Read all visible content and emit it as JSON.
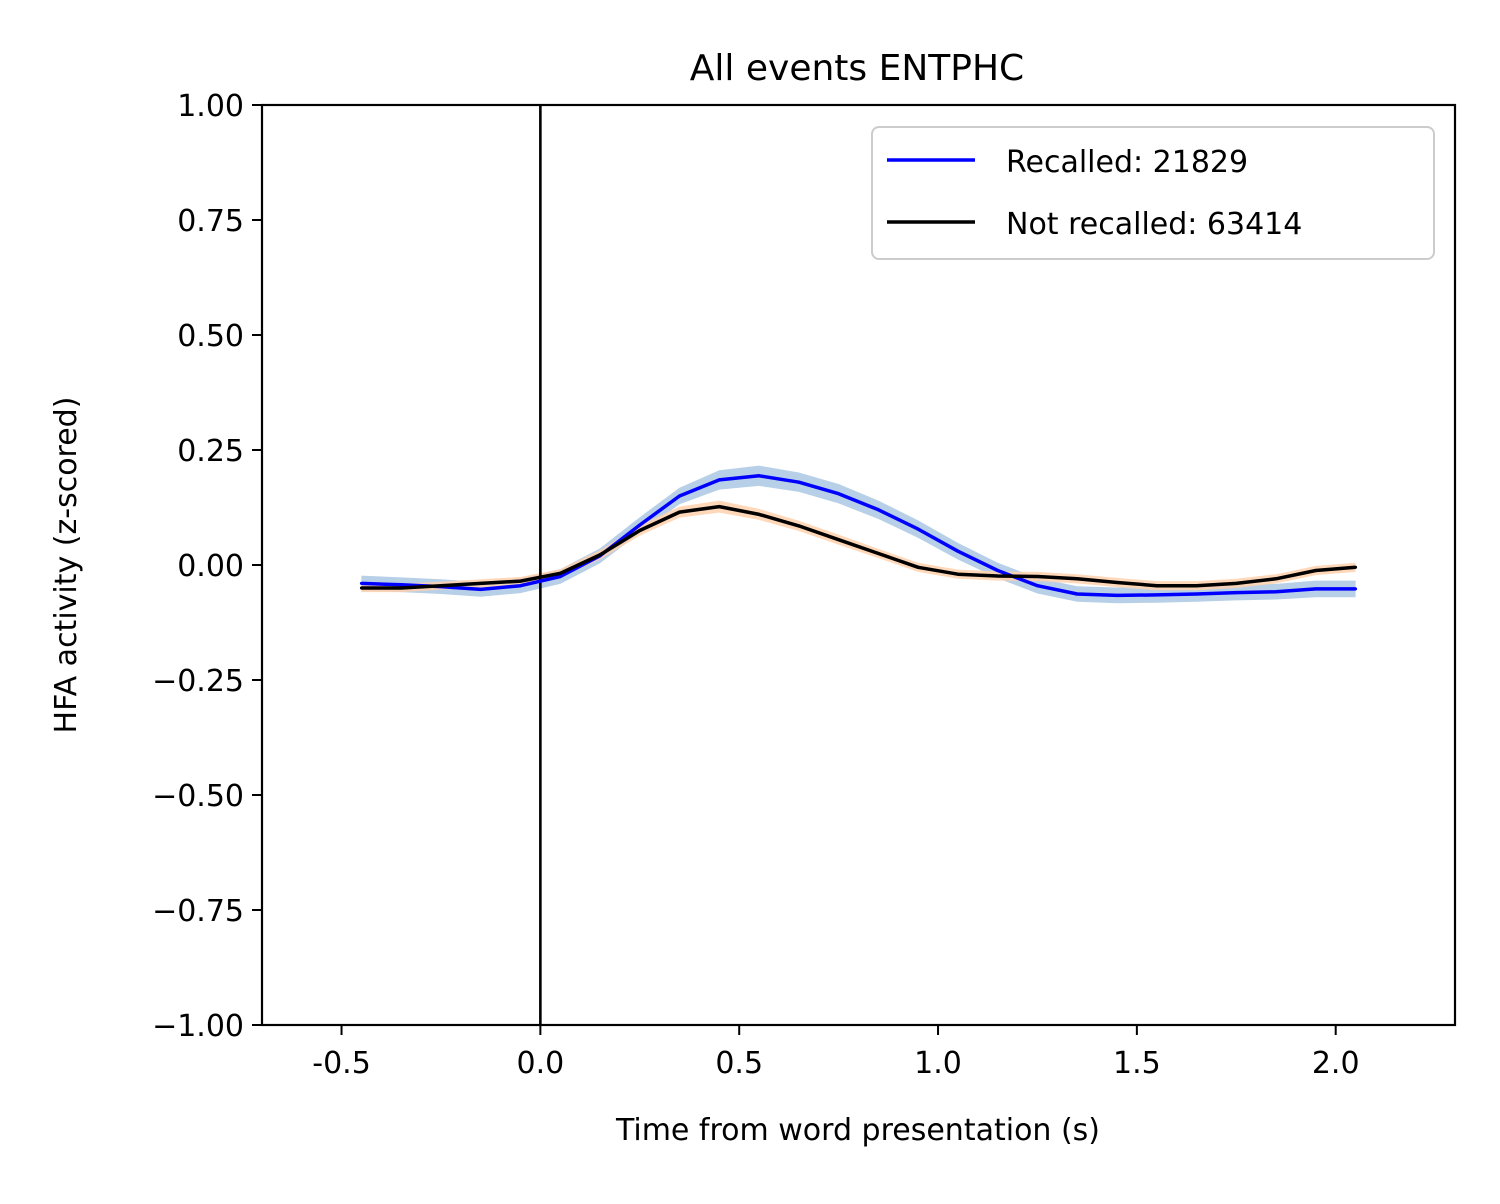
{
  "chart_data": {
    "type": "line",
    "title": "All events ENTPHC",
    "xlabel": "Time from word presentation (s)",
    "ylabel": "HFA activity (z-scored)",
    "xlim": [
      -0.7,
      2.3
    ],
    "ylim": [
      -1.0,
      1.0
    ],
    "xticks": [
      -0.5,
      0.0,
      0.5,
      1.0,
      1.5,
      2.0
    ],
    "xtick_labels": [
      "-0.5",
      "0.0",
      "0.5",
      "1.0",
      "1.5",
      "2.0"
    ],
    "yticks": [
      1.0,
      0.75,
      0.5,
      0.25,
      0.0,
      -0.25,
      -0.5,
      -0.75,
      -1.0
    ],
    "ytick_labels": [
      "1.00",
      "0.75",
      "0.50",
      "0.25",
      "0.00",
      "−0.25",
      "−0.50",
      "−0.75",
      "−1.00"
    ],
    "vline_x": 0.0,
    "grid": false,
    "legend_position": "upper right",
    "x": [
      -0.45,
      -0.35,
      -0.25,
      -0.15,
      -0.05,
      0.05,
      0.15,
      0.25,
      0.35,
      0.45,
      0.55,
      0.65,
      0.75,
      0.85,
      0.95,
      1.05,
      1.15,
      1.25,
      1.35,
      1.45,
      1.55,
      1.65,
      1.75,
      1.85,
      1.95,
      2.05
    ],
    "series": [
      {
        "name": "Recalled: 21829",
        "color": "#0000ff",
        "band_color": "#aac8e4",
        "values": [
          -0.04,
          -0.043,
          -0.047,
          -0.053,
          -0.045,
          -0.025,
          0.02,
          0.087,
          0.15,
          0.185,
          0.194,
          0.18,
          0.155,
          0.12,
          0.078,
          0.03,
          -0.012,
          -0.045,
          -0.063,
          -0.066,
          -0.065,
          -0.063,
          -0.06,
          -0.058,
          -0.052,
          -0.052
        ],
        "error": [
          0.017,
          0.016,
          0.016,
          0.016,
          0.016,
          0.016,
          0.016,
          0.017,
          0.018,
          0.021,
          0.022,
          0.021,
          0.021,
          0.02,
          0.019,
          0.018,
          0.017,
          0.017,
          0.017,
          0.017,
          0.017,
          0.017,
          0.017,
          0.017,
          0.018,
          0.018
        ]
      },
      {
        "name": "Not recalled: 63414",
        "color": "#000000",
        "band_color": "#ffd1ad",
        "values": [
          -0.05,
          -0.05,
          -0.045,
          -0.04,
          -0.035,
          -0.018,
          0.022,
          0.075,
          0.115,
          0.127,
          0.11,
          0.085,
          0.055,
          0.025,
          -0.005,
          -0.02,
          -0.024,
          -0.025,
          -0.03,
          -0.038,
          -0.045,
          -0.045,
          -0.04,
          -0.03,
          -0.012,
          -0.005
        ],
        "error": [
          0.009,
          0.009,
          0.009,
          0.009,
          0.009,
          0.009,
          0.01,
          0.011,
          0.012,
          0.013,
          0.012,
          0.011,
          0.011,
          0.01,
          0.01,
          0.01,
          0.01,
          0.01,
          0.01,
          0.01,
          0.01,
          0.01,
          0.01,
          0.01,
          0.01,
          0.01
        ]
      }
    ]
  }
}
